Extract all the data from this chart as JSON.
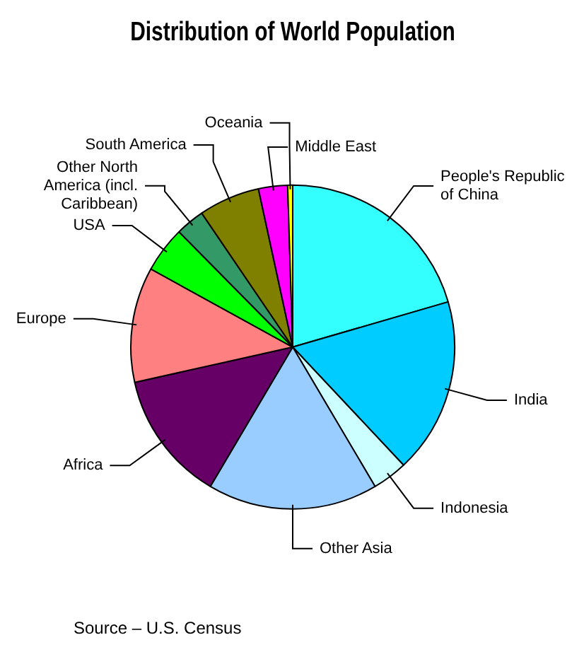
{
  "chart_data": {
    "type": "pie",
    "title": "Distribution of World Population",
    "categories": [
      "People's Republic of China",
      "India",
      "Indonesia",
      "Other Asia",
      "Africa",
      "Europe",
      "USA",
      "Other North America (incl. Caribbean)",
      "South America",
      "Middle East",
      "Oceania"
    ],
    "values": [
      20.5,
      17.5,
      3.5,
      17,
      13,
      11.5,
      4.6,
      2.9,
      6.1,
      2.9,
      0.5
    ],
    "colors": [
      "#33ffff",
      "#00ccff",
      "#ccffff",
      "#99ccff",
      "#660066",
      "#ff8080",
      "#00ff00",
      "#339966",
      "#808000",
      "#ff00ff",
      "#ffff00"
    ],
    "legend": false,
    "annotations": [
      "Source – U.S. Census"
    ]
  }
}
